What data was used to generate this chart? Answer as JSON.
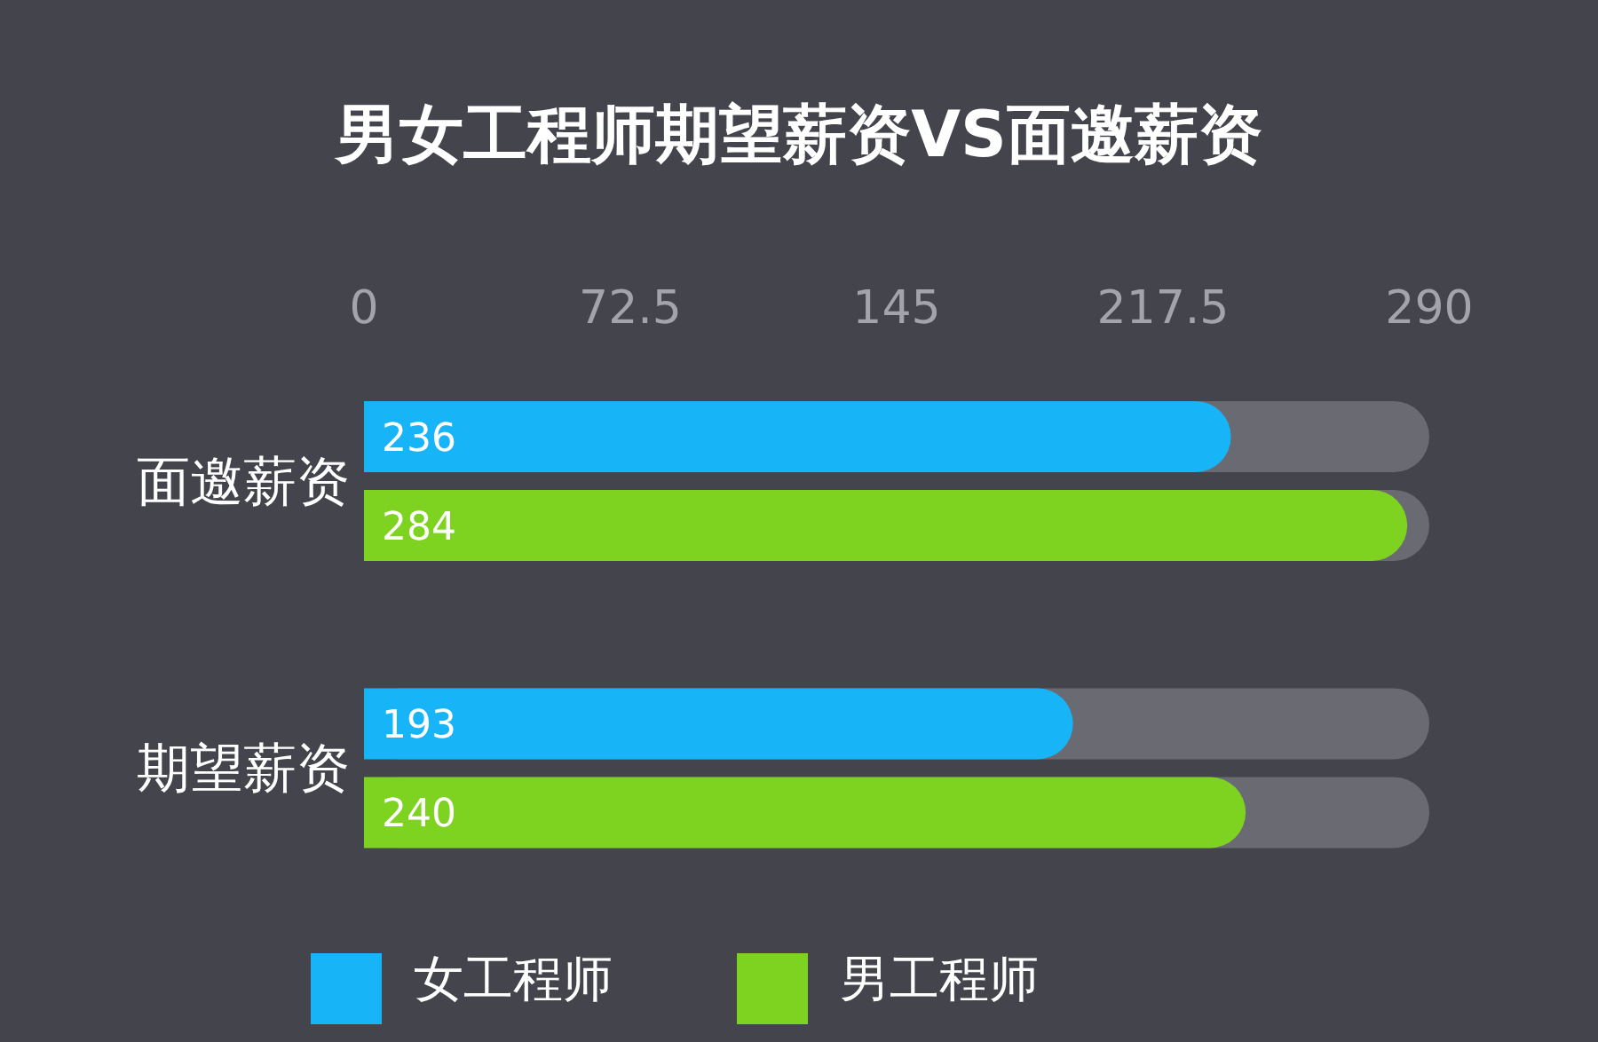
{
  "chart_data": {
    "type": "bar",
    "orientation": "horizontal",
    "title": "男女工程师期望薪资VS面邀薪资",
    "categories": [
      "面邀薪资",
      "期望薪资"
    ],
    "series": [
      {
        "name": "女工程师",
        "color": "#18b4f8",
        "values": [
          236,
          193
        ]
      },
      {
        "name": "男工程师",
        "color": "#7ed321",
        "values": [
          284,
          240
        ]
      }
    ],
    "xlim": [
      0,
      290
    ],
    "xticks": [
      0,
      72.5,
      145,
      217.5,
      290
    ],
    "legend": "bottom",
    "data_labels": true
  }
}
